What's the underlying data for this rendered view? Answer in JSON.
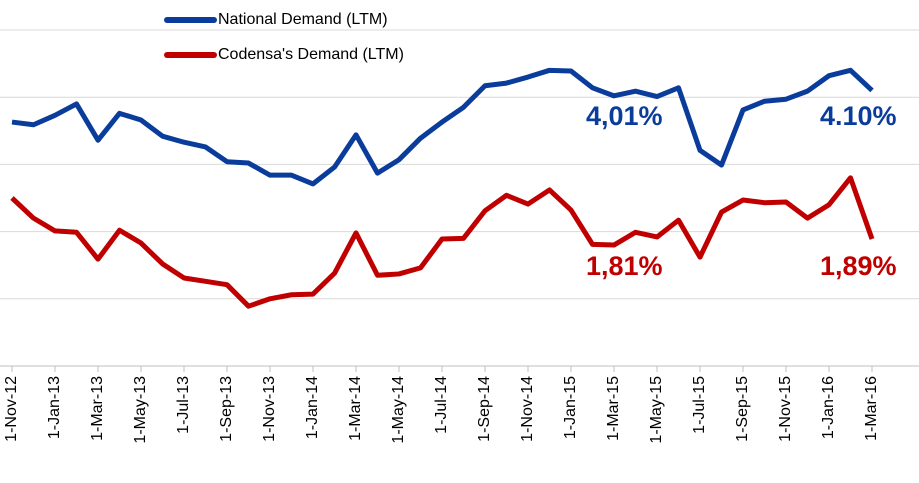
{
  "chart_data": {
    "type": "line",
    "categories": [
      "1-Nov-12",
      null,
      "1-Jan-13",
      null,
      "1-Mar-13",
      null,
      "1-May-13",
      null,
      "1-Jul-13",
      null,
      "1-Sep-13",
      null,
      "1-Nov-13",
      null,
      "1-Jan-14",
      null,
      "1-Mar-14",
      null,
      "1-May-14",
      null,
      "1-Jul-14",
      null,
      "1-Sep-14",
      null,
      "1-Nov-14",
      null,
      "1-Jan-15",
      null,
      "1-Mar-15",
      null,
      "1-May-15",
      null,
      "1-Jul-15",
      null,
      "1-Sep-15",
      null,
      "1-Nov-15",
      null,
      "1-Jan-16",
      null,
      "1-Mar-16"
    ],
    "series": [
      {
        "name": "National Demand (LTM)",
        "color": "#0a3c9c",
        "values": [
          3.63,
          3.59,
          3.73,
          3.9,
          3.36,
          3.76,
          3.66,
          3.42,
          3.33,
          3.26,
          3.04,
          3.02,
          2.84,
          2.84,
          2.71,
          2.96,
          3.44,
          2.87,
          3.07,
          3.39,
          3.63,
          3.85,
          4.17,
          4.21,
          4.3,
          4.4,
          4.39,
          4.14,
          4.02,
          4.09,
          4.01,
          4.14,
          3.21,
          2.99,
          3.81,
          3.94,
          3.97,
          4.09,
          4.32,
          4.4,
          4.1
        ]
      },
      {
        "name": "Codensa's Demand (LTM)",
        "color": "#c00000",
        "values": [
          2.5,
          2.2,
          2.01,
          1.99,
          1.59,
          2.02,
          1.83,
          1.52,
          1.31,
          1.26,
          1.21,
          0.89,
          1.0,
          1.06,
          1.07,
          1.38,
          1.98,
          1.35,
          1.37,
          1.46,
          1.89,
          1.9,
          2.31,
          2.54,
          2.41,
          2.62,
          2.32,
          1.81,
          1.8,
          1.99,
          1.92,
          2.17,
          1.62,
          2.29,
          2.47,
          2.43,
          2.44,
          2.2,
          2.4,
          2.8,
          1.89
        ]
      }
    ],
    "annotations": [
      {
        "text": "4,01%",
        "color": "#0a3c9c"
      },
      {
        "text": "4.10%",
        "color": "#0a3c9c"
      },
      {
        "text": "1,81%",
        "color": "#c00000"
      },
      {
        "text": "1,89%",
        "color": "#c00000"
      }
    ],
    "ylim": [
      0,
      5
    ],
    "yticks": [
      0,
      1,
      2,
      3,
      4,
      5
    ],
    "grid": true,
    "legend": "top-left"
  }
}
